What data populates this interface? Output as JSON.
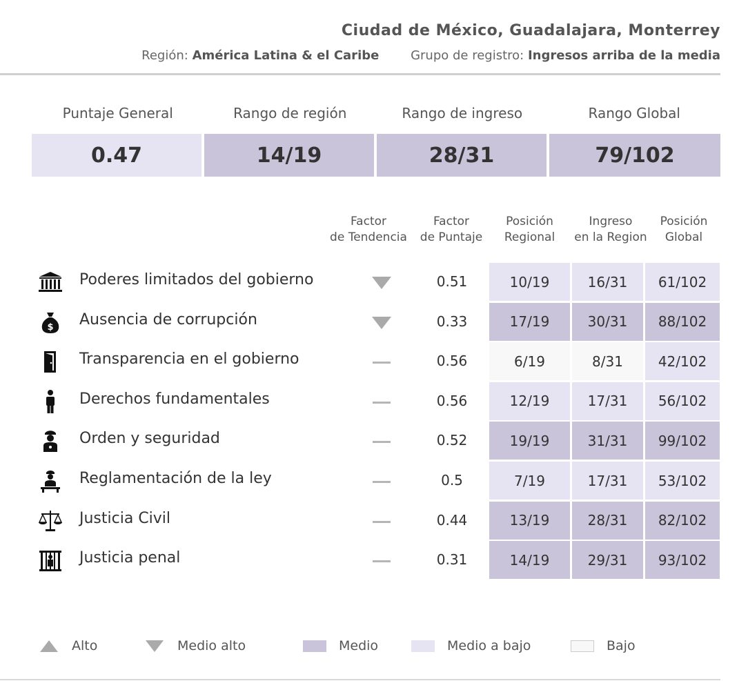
{
  "header": {
    "title": "Ciudad de México, Guadalajara, Monterrey",
    "region_label": "Región:",
    "region_value": "América Latina & el Caribe",
    "group_label": "Grupo de registro:",
    "group_value": "Ingresos arriba de la media"
  },
  "summary": [
    {
      "label": "Puntaje General",
      "value": "0.47",
      "level": "mediobajo"
    },
    {
      "label": "Rango de región",
      "value": "14/19",
      "level": "medio"
    },
    {
      "label": "Rango de ingreso",
      "value": "28/31",
      "level": "medio"
    },
    {
      "label": "Rango Global",
      "value": "79/102",
      "level": "medio"
    }
  ],
  "columns": {
    "trend": [
      "Factor",
      "de Tendencia"
    ],
    "score": [
      "Factor",
      "de Puntaje"
    ],
    "regional": [
      "Posición",
      "Regional"
    ],
    "income": [
      "Ingreso",
      "en la Region"
    ],
    "global": [
      "Posición",
      "Global"
    ]
  },
  "factors": [
    {
      "icon": "government-building-icon",
      "name": "Poderes limitados del gobierno",
      "trend": "down",
      "score": "0.51",
      "regional": "10/19",
      "regional_level": "mediobajo",
      "income": "16/31",
      "income_level": "mediobajo",
      "global": "61/102",
      "global_level": "mediobajo"
    },
    {
      "icon": "money-bag-icon",
      "name": "Ausencia de corrupción",
      "trend": "down",
      "score": "0.33",
      "regional": "17/19",
      "regional_level": "medio",
      "income": "30/31",
      "income_level": "medio",
      "global": "88/102",
      "global_level": "medio"
    },
    {
      "icon": "door-icon",
      "name": "Transparencia en el gobierno",
      "trend": "flat",
      "score": "0.56",
      "regional": "6/19",
      "regional_level": "bajo",
      "income": "8/31",
      "income_level": "bajo",
      "global": "42/102",
      "global_level": "mediobajo"
    },
    {
      "icon": "person-icon",
      "name": "Derechos fundamentales",
      "trend": "flat",
      "score": "0.56",
      "regional": "12/19",
      "regional_level": "mediobajo",
      "income": "17/31",
      "income_level": "mediobajo",
      "global": "56/102",
      "global_level": "mediobajo"
    },
    {
      "icon": "police-officer-icon",
      "name": "Orden y seguridad",
      "trend": "flat",
      "score": "0.52",
      "regional": "19/19",
      "regional_level": "medio",
      "income": "31/31",
      "income_level": "medio",
      "global": "99/102",
      "global_level": "medio"
    },
    {
      "icon": "official-at-desk-icon",
      "name": "Reglamentación de la ley",
      "trend": "flat",
      "score": "0.5",
      "regional": "7/19",
      "regional_level": "mediobajo",
      "income": "17/31",
      "income_level": "mediobajo",
      "global": "53/102",
      "global_level": "mediobajo"
    },
    {
      "icon": "scales-icon",
      "name": "Justicia Civil",
      "trend": "flat",
      "score": "0.44",
      "regional": "13/19",
      "regional_level": "medio",
      "income": "28/31",
      "income_level": "medio",
      "global": "82/102",
      "global_level": "medio"
    },
    {
      "icon": "jail-icon",
      "name": "Justicia penal",
      "trend": "flat",
      "score": "0.31",
      "regional": "14/19",
      "regional_level": "medio",
      "income": "29/31",
      "income_level": "medio",
      "global": "93/102",
      "global_level": "medio"
    }
  ],
  "legend": {
    "alto": "Alto",
    "medio_alto": "Medio alto",
    "medio": "Medio",
    "medio_bajo": "Medio a bajo",
    "bajo": "Bajo"
  },
  "colors": {
    "medio": "#c9c4d9",
    "mediobajo": "#e6e3f2",
    "bajo": "#f8f8f8",
    "trend": "#aaaaaa"
  }
}
